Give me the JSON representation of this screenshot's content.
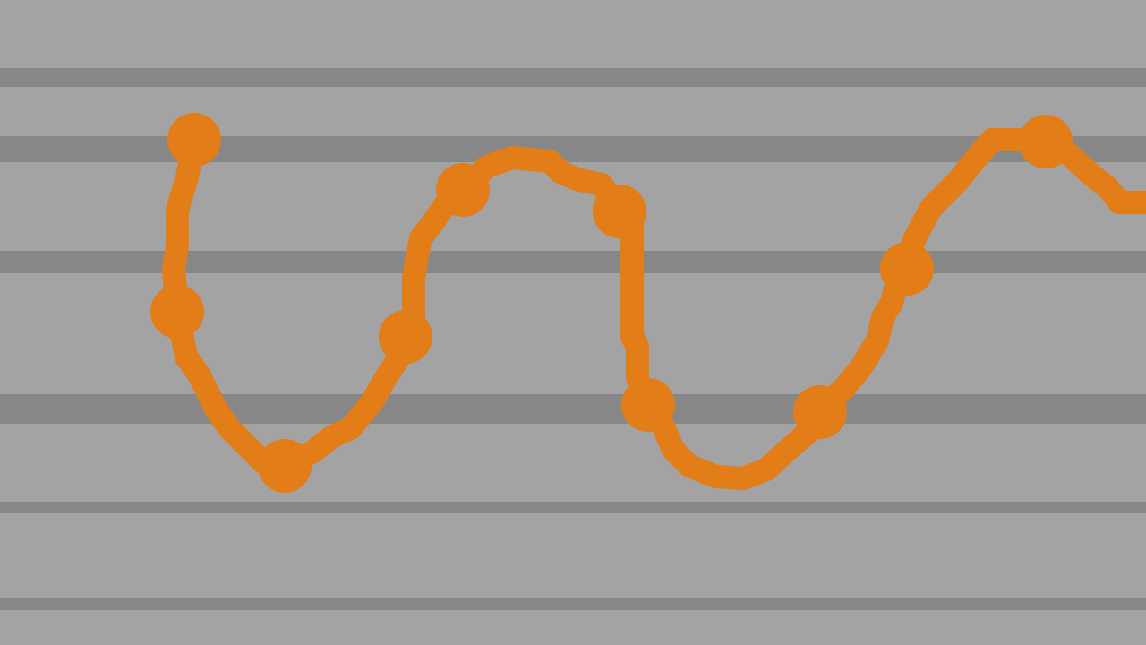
{
  "scene": {
    "colors": {
      "background": "#a3a3a3",
      "stripe": "#878787",
      "path": "#e27d18"
    }
  }
}
